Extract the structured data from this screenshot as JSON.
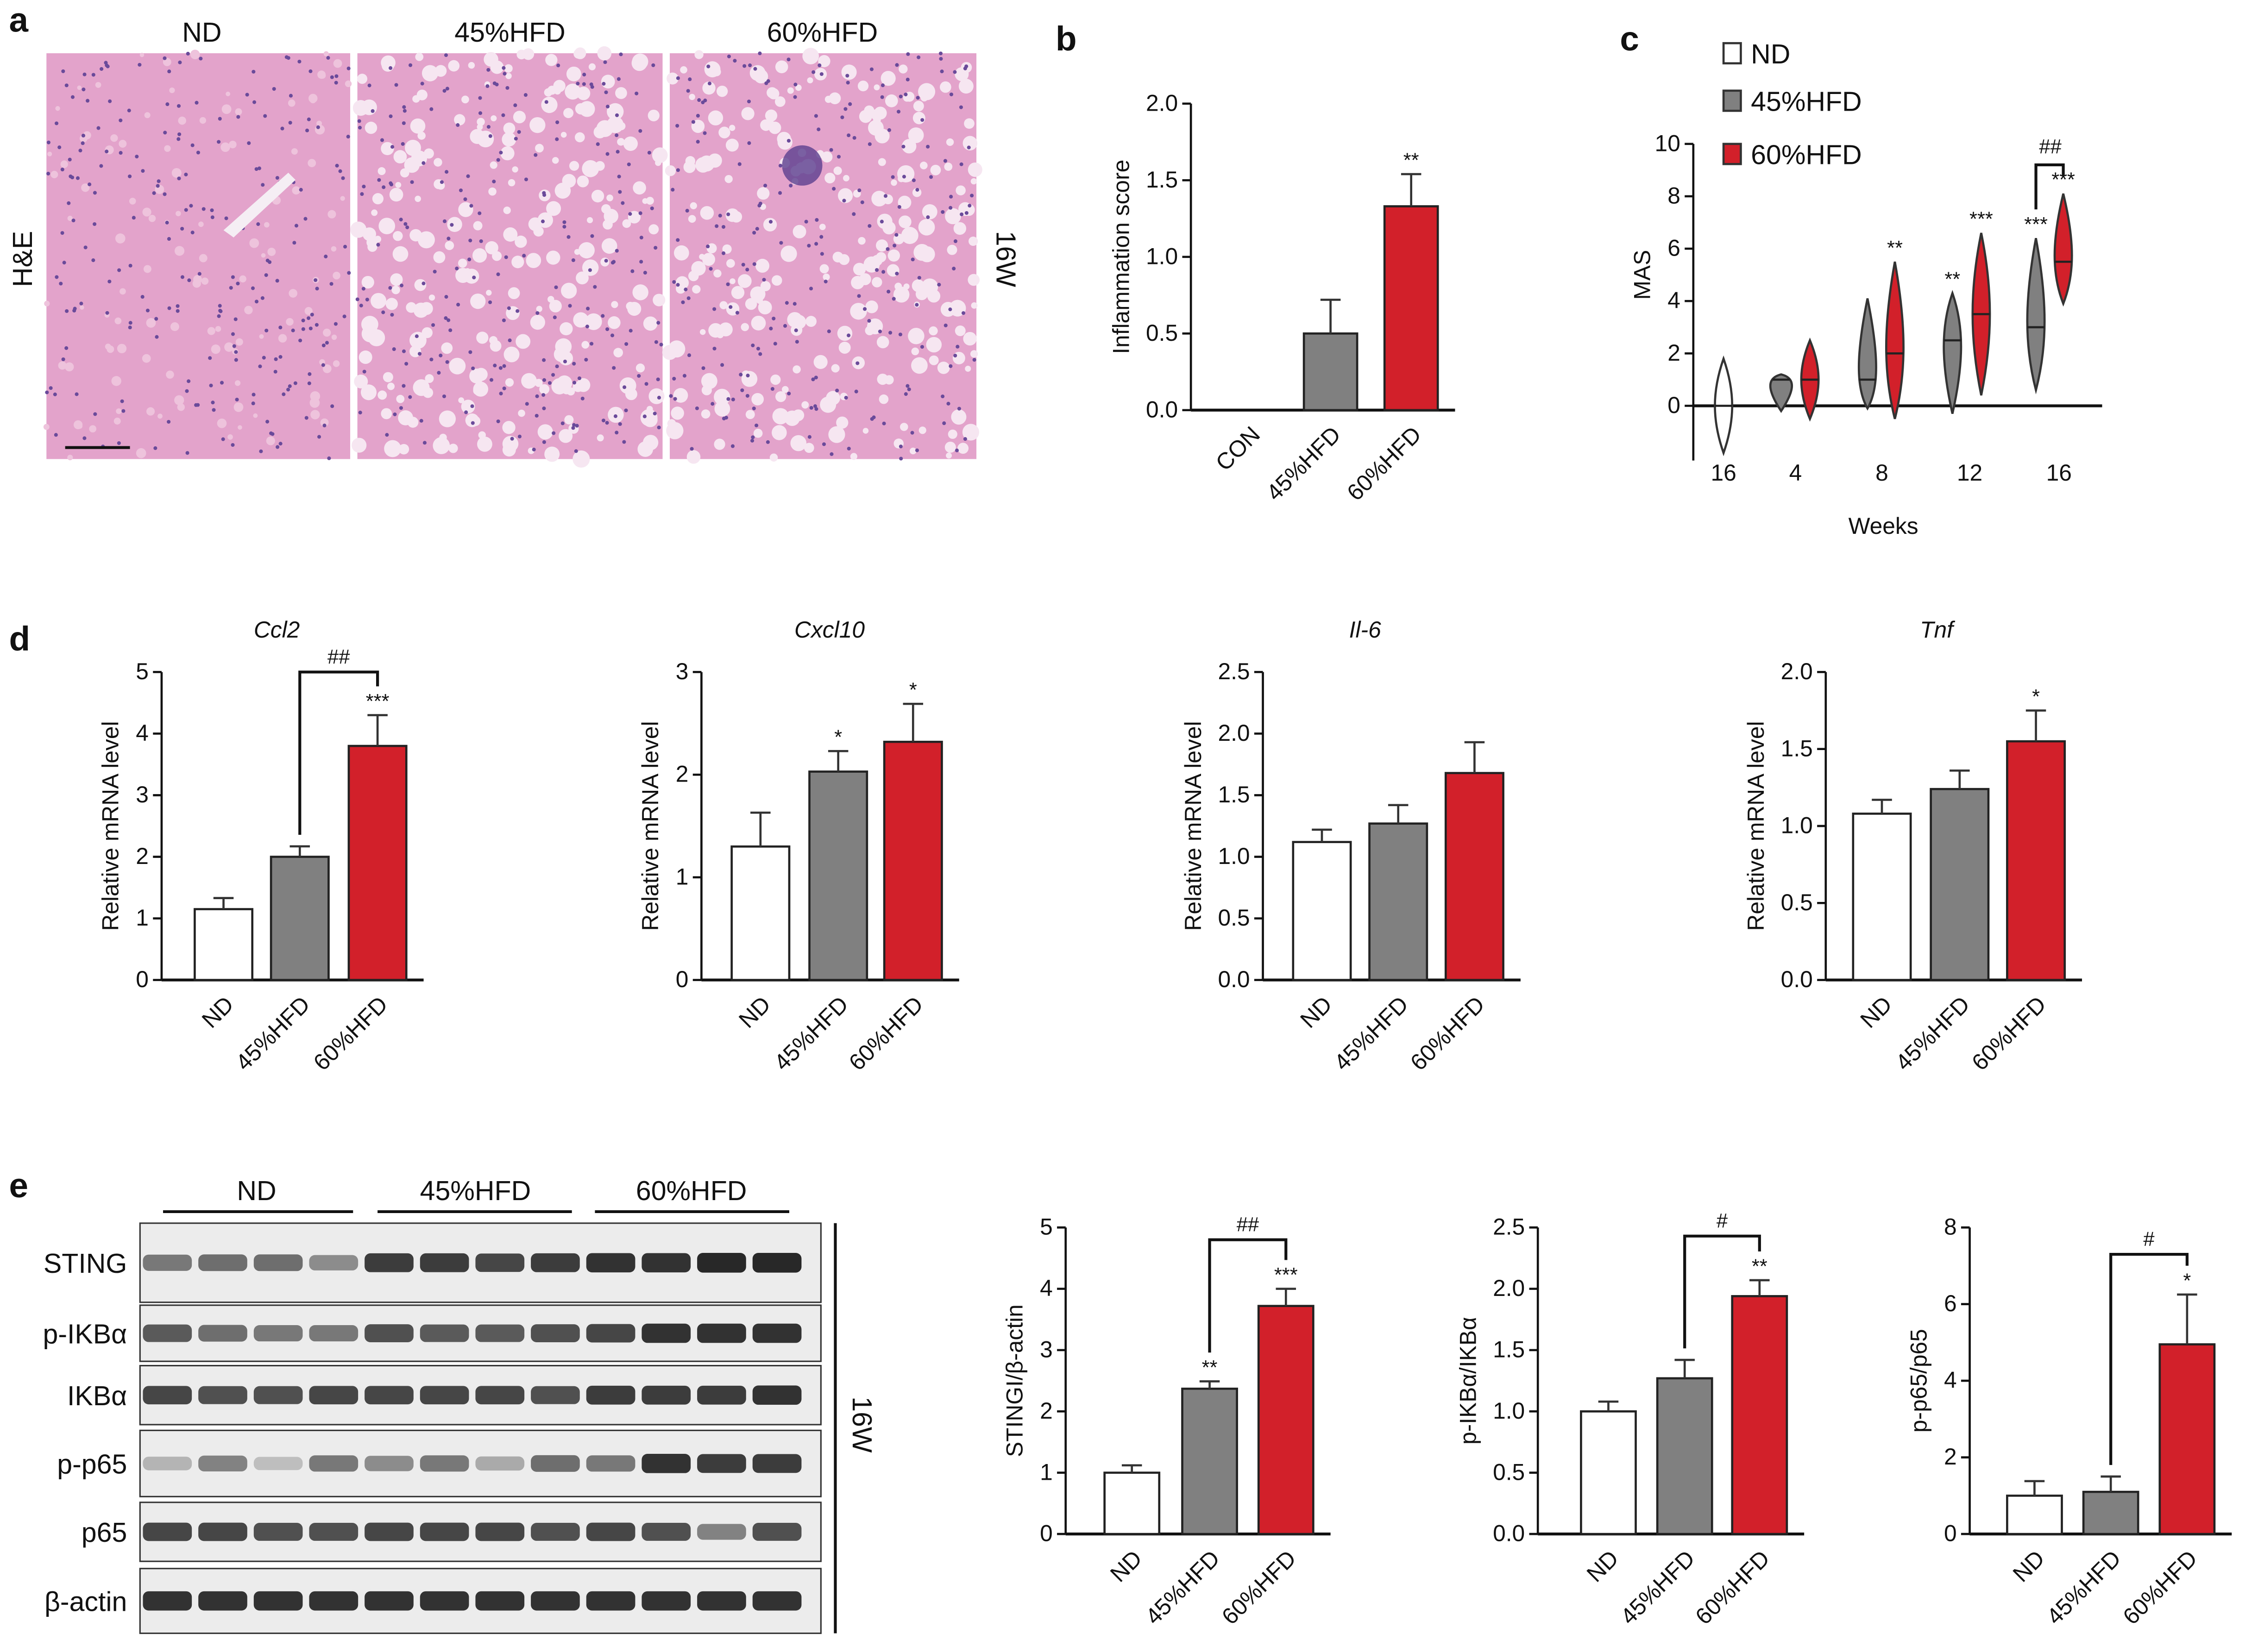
{
  "panel_labels": {
    "a": "a",
    "b": "b",
    "c": "c",
    "d": "d",
    "e": "e"
  },
  "panel_a": {
    "columns": [
      "ND",
      "45%HFD",
      "60%HFD"
    ],
    "row_label": "H&E",
    "side_label": "16W"
  },
  "colors": {
    "ND": "#ffffff",
    "45%HFD": "#808080",
    "60%HFD": "#d2202a"
  },
  "panel_c_legend": [
    "ND",
    "45%HFD",
    "60%HFD"
  ],
  "chart_data": [
    {
      "id": "b",
      "type": "bar",
      "title": "",
      "ylabel": "Inflammation score",
      "xlabel": "",
      "categories": [
        "CON",
        "45%HFD",
        "60%HFD"
      ],
      "values": [
        0,
        0.5,
        1.33
      ],
      "errors": [
        0,
        0.22,
        0.21
      ],
      "sig": [
        "",
        "",
        "**"
      ],
      "ylim": [
        0,
        2
      ],
      "yticks": [
        "0.0",
        "0.5",
        "1.0",
        "1.5",
        "2.0"
      ],
      "bracket": null
    },
    {
      "id": "c",
      "type": "violin",
      "ylabel": "MAS",
      "xlabel": "Weeks",
      "ylim": [
        0,
        10
      ],
      "yticks": [
        "0",
        "2",
        "4",
        "6",
        "8",
        "10"
      ],
      "xticks": [
        "16",
        "4",
        "8",
        "12",
        "16"
      ],
      "series": [
        {
          "group": "ND",
          "week": "16",
          "median": 0,
          "min": -1.8,
          "max": 1.8,
          "sig": ""
        },
        {
          "group": "45%HFD",
          "week": "4",
          "median": 1,
          "min": -0.2,
          "max": 1.2,
          "sig": ""
        },
        {
          "group": "60%HFD",
          "week": "4",
          "median": 1,
          "min": -0.5,
          "max": 2.5,
          "sig": ""
        },
        {
          "group": "45%HFD",
          "week": "8",
          "median": 1,
          "min": -0.1,
          "max": 4.1,
          "sig": ""
        },
        {
          "group": "60%HFD",
          "week": "8",
          "median": 2,
          "min": -0.5,
          "max": 5.5,
          "sig": "**"
        },
        {
          "group": "45%HFD",
          "week": "12",
          "median": 2.5,
          "min": -0.3,
          "max": 4.3,
          "sig": "**"
        },
        {
          "group": "60%HFD",
          "week": "12",
          "median": 3.5,
          "min": 0.4,
          "max": 6.6,
          "sig": "***"
        },
        {
          "group": "45%HFD",
          "week": "16",
          "median": 3,
          "min": 0.6,
          "max": 6.4,
          "sig": "***"
        },
        {
          "group": "60%HFD",
          "week": "16",
          "median": 5.5,
          "min": 3.9,
          "max": 8.1,
          "sig": "***"
        }
      ],
      "bracket": {
        "label": "##",
        "at": 9.2
      }
    },
    {
      "id": "ccl2",
      "type": "bar",
      "title": "Ccl2",
      "ylabel": "Relative mRNA level",
      "categories": [
        "ND",
        "45%HFD",
        "60%HFD"
      ],
      "values": [
        1.15,
        2.0,
        3.8
      ],
      "errors": [
        0.18,
        0.17,
        0.5
      ],
      "sig": [
        "",
        "",
        "***"
      ],
      "ylim": [
        0,
        5
      ],
      "yticks": [
        "0",
        "1",
        "2",
        "3",
        "4",
        "5"
      ],
      "bracket": {
        "label": "##",
        "at": 5.0
      }
    },
    {
      "id": "cxcl10",
      "type": "bar",
      "title": "Cxcl10",
      "ylabel": "Relative mRNA level",
      "categories": [
        "ND",
        "45%HFD",
        "60%HFD"
      ],
      "values": [
        1.3,
        2.03,
        2.32
      ],
      "errors": [
        0.33,
        0.2,
        0.37
      ],
      "sig": [
        "",
        "*",
        "*"
      ],
      "ylim": [
        0,
        3
      ],
      "yticks": [
        "0",
        "1",
        "2",
        "3"
      ],
      "bracket": null
    },
    {
      "id": "il6",
      "type": "bar",
      "title": "Il-6",
      "ylabel": "Relative mRNA level",
      "categories": [
        "ND",
        "45%HFD",
        "60%HFD"
      ],
      "values": [
        1.12,
        1.27,
        1.68
      ],
      "errors": [
        0.1,
        0.15,
        0.25
      ],
      "sig": [
        "",
        "",
        ""
      ],
      "ylim": [
        0,
        2.5
      ],
      "yticks": [
        "0.0",
        "0.5",
        "1.0",
        "1.5",
        "2.0",
        "2.5"
      ],
      "bracket": null
    },
    {
      "id": "tnf",
      "type": "bar",
      "title": "Tnf",
      "ylabel": "Relative mRNA level",
      "categories": [
        "ND",
        "45%HFD",
        "60%HFD"
      ],
      "values": [
        1.08,
        1.24,
        1.55
      ],
      "errors": [
        0.09,
        0.12,
        0.2
      ],
      "sig": [
        "",
        "",
        "*"
      ],
      "ylim": [
        0,
        2
      ],
      "yticks": [
        "0.0",
        "0.5",
        "1.0",
        "1.5",
        "2.0"
      ],
      "bracket": null
    },
    {
      "id": "sting",
      "type": "bar",
      "title": "",
      "ylabel": "STINGI/β-actin",
      "categories": [
        "ND",
        "45%HFD",
        "60%HFD"
      ],
      "values": [
        1.0,
        2.37,
        3.72
      ],
      "errors": [
        0.12,
        0.12,
        0.28
      ],
      "sig": [
        "",
        "**",
        "***"
      ],
      "ylim": [
        0,
        5
      ],
      "yticks": [
        "0",
        "1",
        "2",
        "3",
        "4",
        "5"
      ],
      "bracket": {
        "label": "##",
        "at": 4.8
      }
    },
    {
      "id": "pikba",
      "type": "bar",
      "title": "",
      "ylabel": "p-IKBα/IKBα",
      "categories": [
        "ND",
        "45%HFD",
        "60%HFD"
      ],
      "values": [
        1.0,
        1.27,
        1.94
      ],
      "errors": [
        0.08,
        0.15,
        0.13
      ],
      "sig": [
        "",
        "",
        "**"
      ],
      "ylim": [
        0,
        2.5
      ],
      "yticks": [
        "0.0",
        "0.5",
        "1.0",
        "1.5",
        "2.0",
        "2.5"
      ],
      "bracket": {
        "label": "#",
        "at": 2.43
      }
    },
    {
      "id": "pp65",
      "type": "bar",
      "title": "",
      "ylabel": "p-p65/p65",
      "categories": [
        "ND",
        "45%HFD",
        "60%HFD"
      ],
      "values": [
        1.0,
        1.1,
        4.95
      ],
      "errors": [
        0.38,
        0.4,
        1.3
      ],
      "sig": [
        "",
        "",
        "*"
      ],
      "ylim": [
        0,
        8
      ],
      "yticks": [
        "0",
        "2",
        "4",
        "6",
        "8"
      ],
      "bracket": {
        "label": "#",
        "at": 7.3
      }
    }
  ],
  "blot": {
    "groups": [
      "ND",
      "45%HFD",
      "60%HFD"
    ],
    "side_label": "16W",
    "rows": [
      {
        "label": "STING",
        "intensity": [
          0.55,
          0.6,
          0.6,
          0.45,
          0.85,
          0.85,
          0.8,
          0.85,
          0.9,
          0.9,
          0.95,
          0.95
        ]
      },
      {
        "label": "p-IKBα",
        "intensity": [
          0.7,
          0.6,
          0.55,
          0.55,
          0.75,
          0.7,
          0.7,
          0.75,
          0.8,
          0.9,
          0.9,
          0.9
        ]
      },
      {
        "label": "IKBα",
        "intensity": [
          0.8,
          0.75,
          0.75,
          0.8,
          0.8,
          0.8,
          0.8,
          0.75,
          0.85,
          0.85,
          0.85,
          0.9
        ]
      },
      {
        "label": "p-p65",
        "intensity": [
          0.25,
          0.5,
          0.2,
          0.55,
          0.45,
          0.55,
          0.3,
          0.6,
          0.55,
          0.9,
          0.85,
          0.85
        ]
      },
      {
        "label": "p65",
        "intensity": [
          0.8,
          0.8,
          0.75,
          0.75,
          0.8,
          0.8,
          0.8,
          0.75,
          0.8,
          0.75,
          0.5,
          0.75
        ]
      },
      {
        "label": "β-actin",
        "intensity": [
          0.9,
          0.9,
          0.9,
          0.9,
          0.9,
          0.9,
          0.9,
          0.9,
          0.9,
          0.9,
          0.9,
          0.9
        ]
      }
    ]
  }
}
